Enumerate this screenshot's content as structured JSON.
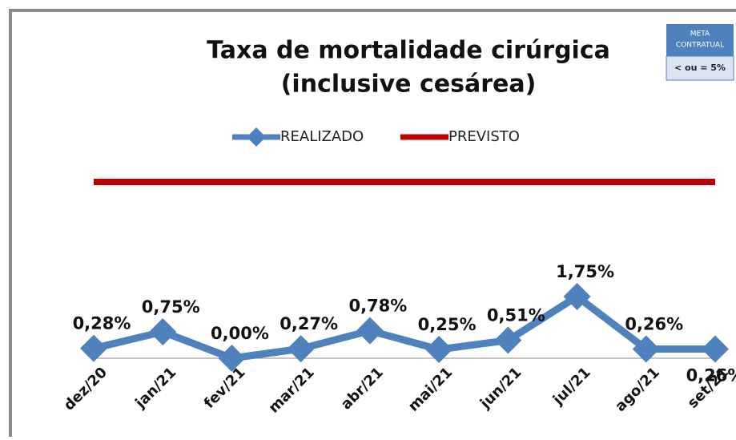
{
  "chart_data": {
    "type": "line",
    "title": [
      "Taxa de mortalidade cirúrgica",
      "(inclusive cesárea)"
    ],
    "annotation": {
      "title": [
        "META",
        "CONTRATUAL"
      ],
      "text": "< ou = 5%"
    },
    "categories": [
      "dez/20",
      "jan/21",
      "fev/21",
      "mar/21",
      "abr/21",
      "mai/21",
      "jun/21",
      "jul/21",
      "ago/21",
      "set/21"
    ],
    "series": [
      {
        "name": "REALIZADO",
        "color": "#4f81bd",
        "values": [
          0.28,
          0.75,
          0,
          0.27,
          0.78,
          0.25,
          0.51,
          1.75,
          0.26,
          0.26
        ],
        "value_labels": [
          "0,28%",
          "0,75%",
          "0,00%",
          "0,27%",
          "0,78%",
          "0,25%",
          "0,51%",
          "1,75%",
          "0,26%",
          "0,26%"
        ]
      },
      {
        "name": "PREVISTO",
        "color": "#c00000",
        "values": [
          5,
          5,
          5,
          5,
          5,
          5,
          5,
          5,
          5,
          5
        ]
      }
    ],
    "ylim": [
      0,
      6
    ],
    "legend": "top"
  }
}
